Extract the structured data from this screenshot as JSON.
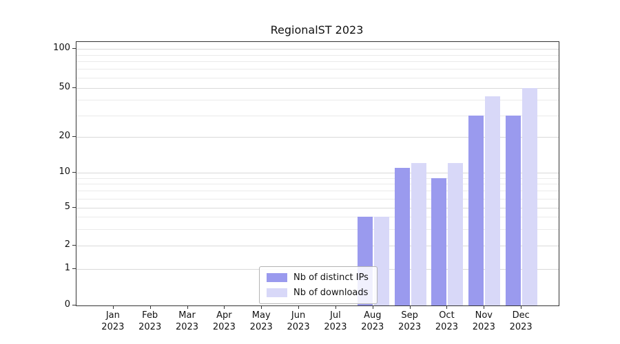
{
  "title": "RegionalST 2023",
  "chart_data": {
    "type": "bar",
    "title": "RegionalST 2023",
    "year": "2023",
    "categories": [
      "Jan",
      "Feb",
      "Mar",
      "Apr",
      "May",
      "Jun",
      "Jul",
      "Aug",
      "Sep",
      "Oct",
      "Nov",
      "Dec"
    ],
    "series": [
      {
        "name": "Nb of distinct IPs",
        "color": "#9a9aee",
        "values": [
          0,
          0,
          0,
          0,
          0,
          0,
          0,
          4,
          11,
          9,
          30,
          30
        ]
      },
      {
        "name": "Nb of downloads",
        "color": "#d8d8f8",
        "values": [
          0,
          0,
          0,
          0,
          0,
          0,
          0,
          4,
          12,
          12,
          43,
          50
        ]
      }
    ],
    "yticks": [
      0,
      1,
      2,
      5,
      10,
      20,
      50,
      100
    ],
    "yticks_minor": [
      3,
      4,
      6,
      7,
      8,
      9,
      30,
      40,
      60,
      70,
      80,
      90
    ],
    "yscale": "symlog",
    "ylim": [
      0,
      115
    ],
    "xlabel": "",
    "ylabel": "",
    "grid": "horizontal",
    "legend_position": "lower center, inside plot"
  },
  "colors": {
    "grid_major": "#d9d9d9",
    "grid_minor": "#eaeaea",
    "axis": "#333333",
    "text": "#111111",
    "legend_border": "#b3b3b3"
  }
}
